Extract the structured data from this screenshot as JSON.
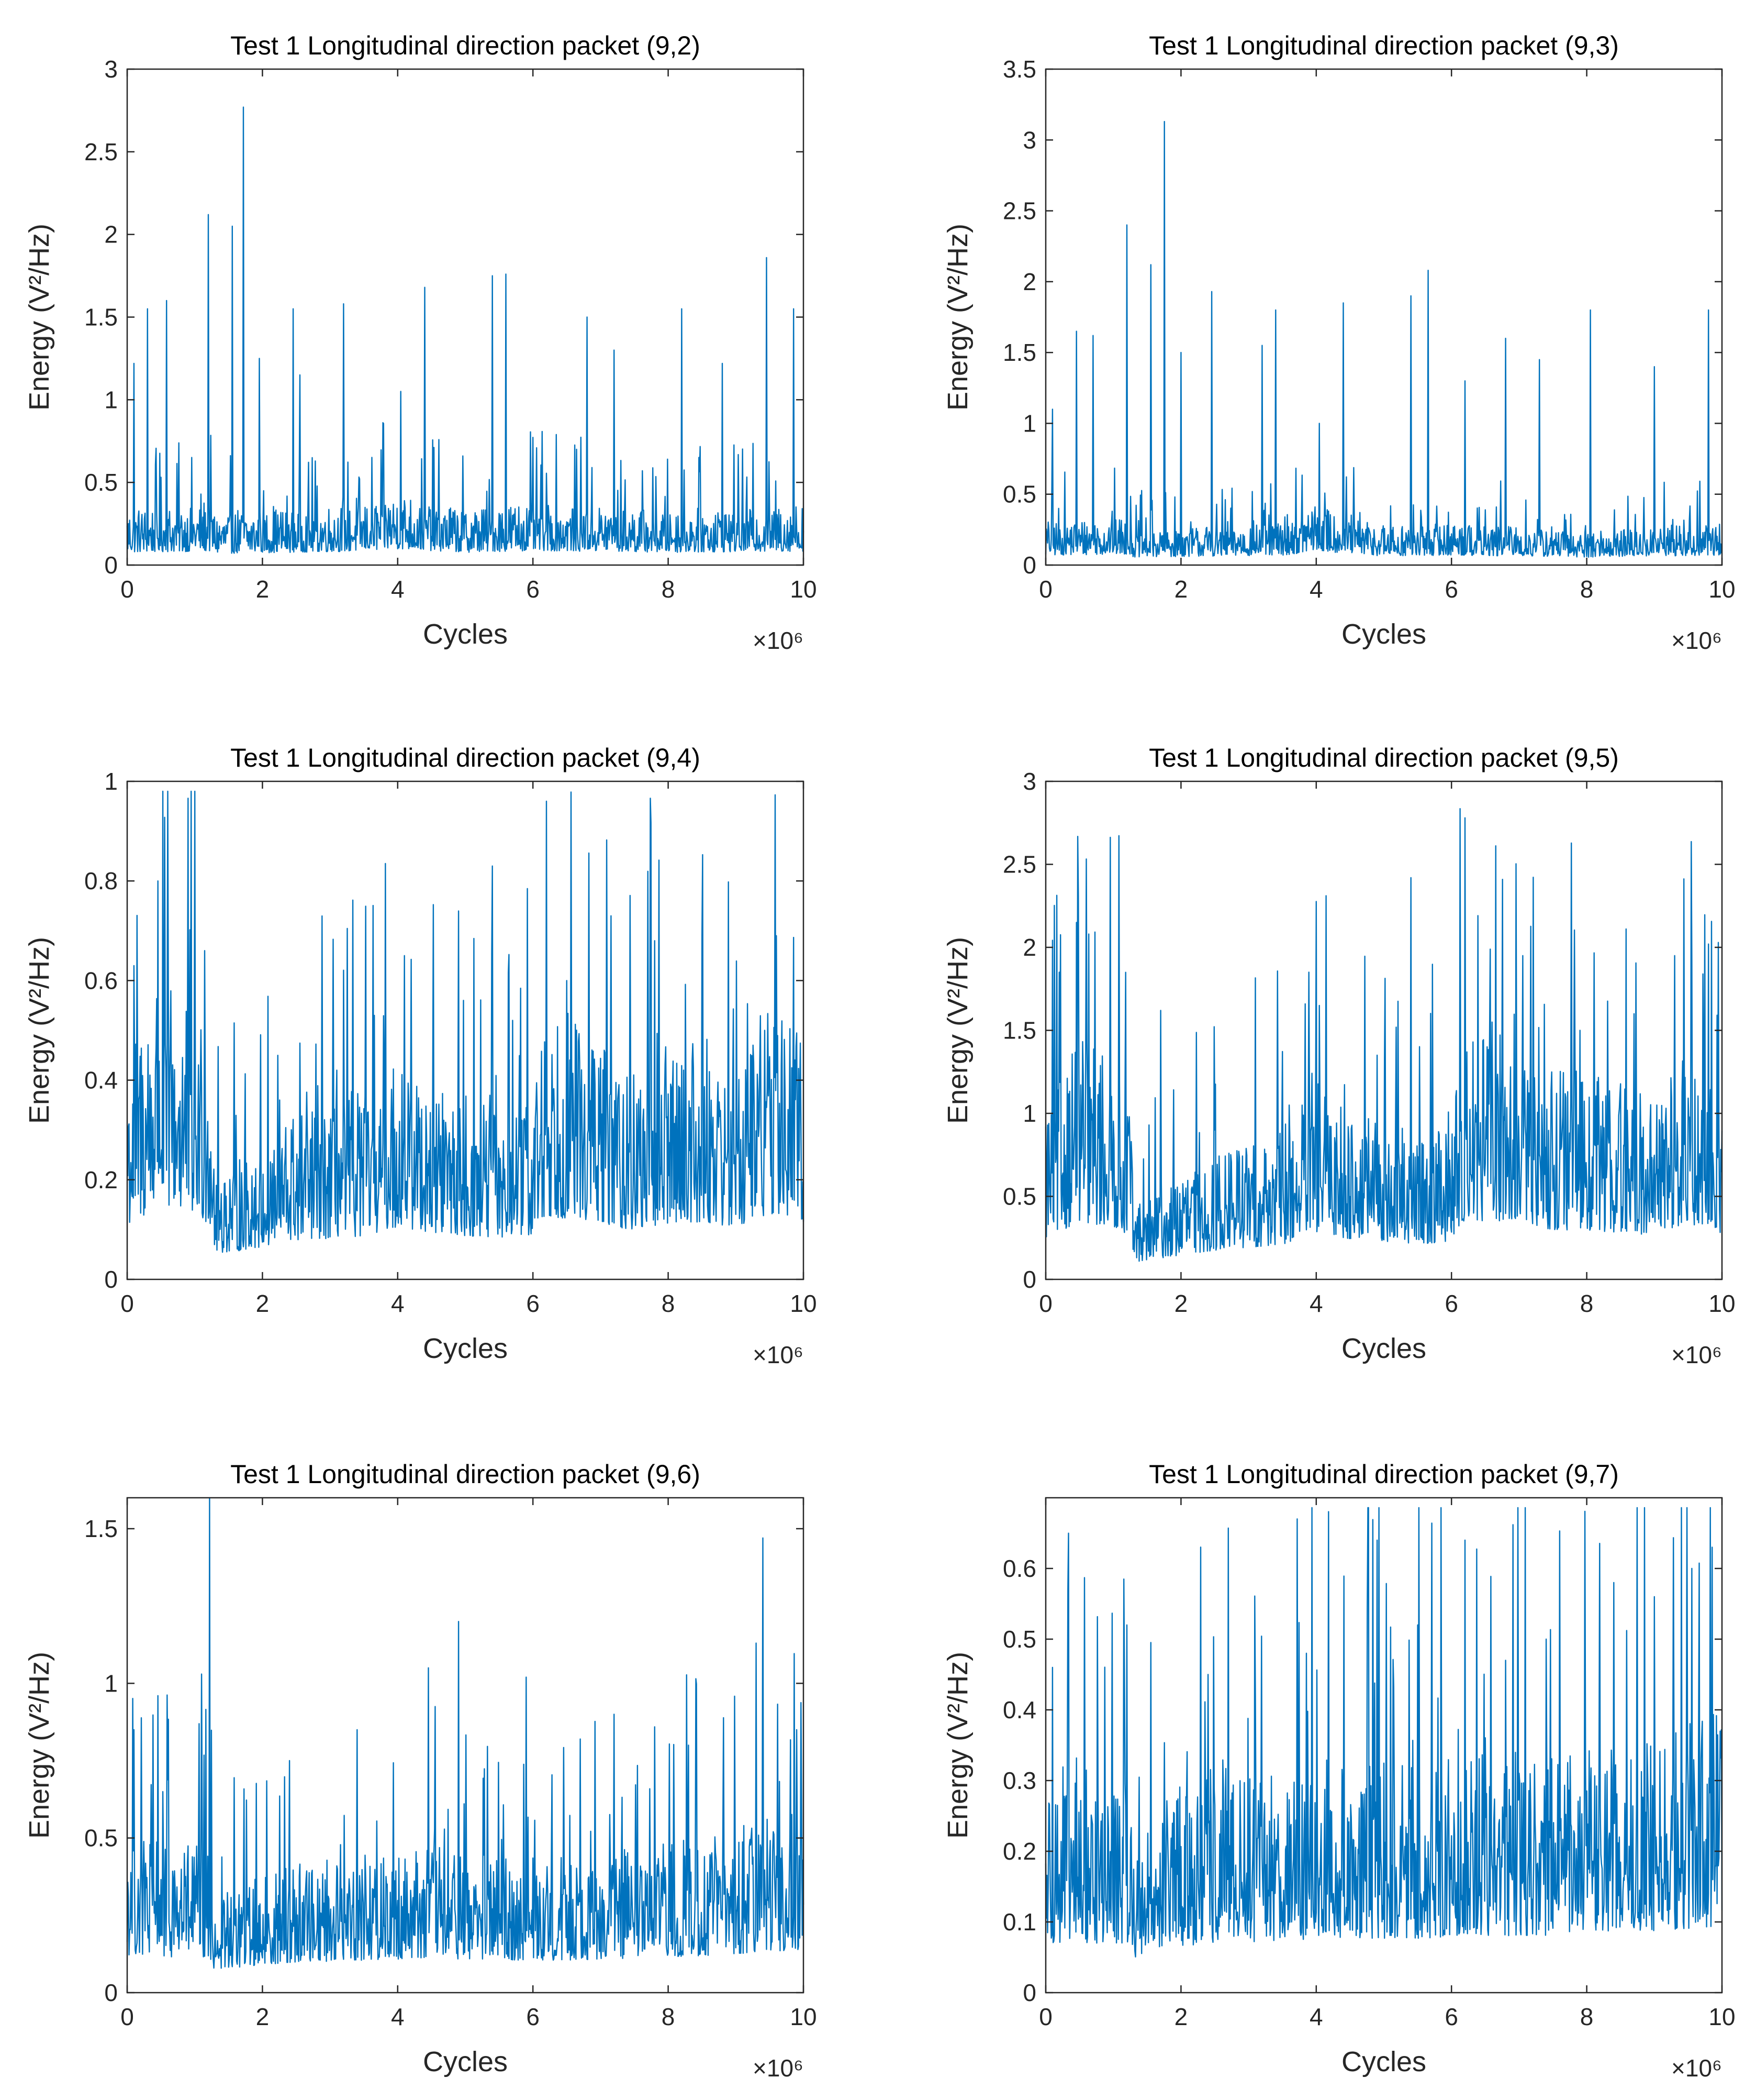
{
  "accent_color": "#0072BD",
  "chart_data": [
    {
      "type": "line",
      "title": "Test 1 Longitudinal direction packet (9,2)",
      "xlabel": "Cycles",
      "ylabel": "Energy (V²/Hz)",
      "x_multiplier": "×10⁶",
      "xlim": [
        0,
        10
      ],
      "ylim": [
        0,
        3
      ],
      "xticks": [
        0,
        2,
        4,
        6,
        8,
        10
      ],
      "yticks": [
        0,
        0.5,
        1,
        1.5,
        2,
        2.5,
        3
      ],
      "ytick_labels": [
        "0",
        "0.5",
        "1",
        "1.5",
        "2",
        "2.5",
        "3"
      ],
      "series": [
        {
          "name": "Energy",
          "envelope": {
            "x": [
              0,
              1.25,
              1.3,
              3.5,
              4.0,
              5.0,
              6.0,
              8.0,
              10.0
            ],
            "y": [
              0.22,
              0.24,
              0.2,
              0.24,
              0.28,
              0.22,
              0.25,
              0.22,
              0.24
            ]
          },
          "peaks": [
            {
              "x": 1.72,
              "y": 2.77
            },
            {
              "x": 1.2,
              "y": 2.12
            },
            {
              "x": 1.55,
              "y": 2.05
            },
            {
              "x": 9.45,
              "y": 1.86
            },
            {
              "x": 5.4,
              "y": 1.75
            },
            {
              "x": 5.6,
              "y": 1.76
            },
            {
              "x": 4.4,
              "y": 1.68
            },
            {
              "x": 0.58,
              "y": 1.6
            },
            {
              "x": 0.3,
              "y": 1.55
            },
            {
              "x": 2.45,
              "y": 1.55
            },
            {
              "x": 3.2,
              "y": 1.58
            },
            {
              "x": 6.8,
              "y": 1.5
            },
            {
              "x": 8.2,
              "y": 1.55
            },
            {
              "x": 9.85,
              "y": 1.55
            },
            {
              "x": 0.1,
              "y": 1.22
            },
            {
              "x": 1.95,
              "y": 1.25
            },
            {
              "x": 2.55,
              "y": 1.15
            },
            {
              "x": 4.05,
              "y": 1.05
            },
            {
              "x": 7.2,
              "y": 1.3
            },
            {
              "x": 8.8,
              "y": 1.22
            }
          ]
        }
      ]
    },
    {
      "type": "line",
      "title": "Test 1 Longitudinal direction packet (9,3)",
      "xlabel": "Cycles",
      "ylabel": "Energy (V²/Hz)",
      "x_multiplier": "×10⁶",
      "xlim": [
        0,
        10
      ],
      "ylim": [
        0,
        3.5
      ],
      "xticks": [
        0,
        2,
        4,
        6,
        8,
        10
      ],
      "yticks": [
        0,
        0.5,
        1,
        1.5,
        2,
        2.5,
        3,
        3.5
      ],
      "ytick_labels": [
        "0",
        "0.5",
        "1",
        "1.5",
        "2",
        "2.5",
        "3",
        "3.5"
      ],
      "series": [
        {
          "name": "Energy",
          "envelope": {
            "x": [
              0,
              1.25,
              1.3,
              3.5,
              4.0,
              5.0,
              6.0,
              8.0,
              10.0
            ],
            "y": [
              0.2,
              0.22,
              0.16,
              0.2,
              0.28,
              0.18,
              0.2,
              0.16,
              0.2
            ]
          },
          "peaks": [
            {
              "x": 1.75,
              "y": 3.13
            },
            {
              "x": 1.2,
              "y": 2.4
            },
            {
              "x": 1.55,
              "y": 2.12
            },
            {
              "x": 5.65,
              "y": 2.08
            },
            {
              "x": 2.45,
              "y": 1.93
            },
            {
              "x": 5.4,
              "y": 1.9
            },
            {
              "x": 4.4,
              "y": 1.85
            },
            {
              "x": 3.4,
              "y": 1.8
            },
            {
              "x": 8.05,
              "y": 1.8
            },
            {
              "x": 9.8,
              "y": 1.8
            },
            {
              "x": 0.45,
              "y": 1.65
            },
            {
              "x": 0.7,
              "y": 1.62
            },
            {
              "x": 6.8,
              "y": 1.6
            },
            {
              "x": 3.2,
              "y": 1.55
            },
            {
              "x": 0.1,
              "y": 1.1
            },
            {
              "x": 2.0,
              "y": 1.5
            },
            {
              "x": 7.3,
              "y": 1.45
            },
            {
              "x": 9.0,
              "y": 1.4
            },
            {
              "x": 4.05,
              "y": 1.0
            },
            {
              "x": 6.2,
              "y": 1.3
            }
          ]
        }
      ]
    },
    {
      "type": "line",
      "title": "Test 1 Longitudinal direction packet (9,4)",
      "xlabel": "Cycles",
      "ylabel": "Energy (V²/Hz)",
      "x_multiplier": "×10⁶",
      "xlim": [
        0,
        10
      ],
      "ylim": [
        0,
        1
      ],
      "xticks": [
        0,
        2,
        4,
        6,
        8,
        10
      ],
      "yticks": [
        0,
        0.2,
        0.4,
        0.6,
        0.8,
        1
      ],
      "ytick_labels": [
        "0",
        "0.2",
        "0.4",
        "0.6",
        "0.8",
        "1"
      ],
      "series": [
        {
          "name": "Energy",
          "envelope": {
            "x": [
              0,
              0.5,
              1.1,
              1.25,
              1.3,
              1.6,
              2.5,
              3.5,
              4.0,
              4.5,
              5.5,
              6.0,
              6.2,
              6.8,
              7.5,
              8.0,
              8.5,
              9.0,
              9.5,
              10.0
            ],
            "y": [
              0.3,
              0.42,
              0.35,
              0.3,
              0.15,
              0.16,
              0.22,
              0.25,
              0.3,
              0.27,
              0.23,
              0.25,
              0.36,
              0.34,
              0.28,
              0.32,
              0.33,
              0.3,
              0.38,
              0.33
            ]
          },
          "peaks": [
            {
              "x": 6.2,
              "y": 0.96
            },
            {
              "x": 5.4,
              "y": 0.83
            },
            {
              "x": 0.45,
              "y": 0.8
            },
            {
              "x": 7.15,
              "y": 0.73
            },
            {
              "x": 8.5,
              "y": 0.69
            },
            {
              "x": 9.6,
              "y": 0.69
            },
            {
              "x": 4.1,
              "y": 0.65
            },
            {
              "x": 0.1,
              "y": 0.63
            },
            {
              "x": 1.15,
              "y": 0.66
            },
            {
              "x": 7.8,
              "y": 0.68
            },
            {
              "x": 6.5,
              "y": 0.6
            },
            {
              "x": 2.25,
              "y": 0.36
            },
            {
              "x": 3.1,
              "y": 0.42
            },
            {
              "x": 5.7,
              "y": 0.52
            }
          ]
        }
      ]
    },
    {
      "type": "line",
      "title": "Test 1 Longitudinal direction packet (9,5)",
      "xlabel": "Cycles",
      "ylabel": "Energy (V²/Hz)",
      "x_multiplier": "×10⁶",
      "xlim": [
        0,
        10
      ],
      "ylim": [
        0,
        3
      ],
      "xticks": [
        0,
        2,
        4,
        6,
        8,
        10
      ],
      "yticks": [
        0,
        0.5,
        1,
        1.5,
        2,
        2.5,
        3
      ],
      "ytick_labels": [
        "0",
        "0.5",
        "1",
        "1.5",
        "2",
        "2.5",
        "3"
      ],
      "series": [
        {
          "name": "Energy",
          "envelope": {
            "x": [
              0,
              0.5,
              1.1,
              1.25,
              1.3,
              1.6,
              2.5,
              3.5,
              4.0,
              4.5,
              5.5,
              6.0,
              6.2,
              6.8,
              7.5,
              8.0,
              9.0,
              9.5,
              10.0
            ],
            "y": [
              0.7,
              1.0,
              0.85,
              0.75,
              0.3,
              0.35,
              0.5,
              0.6,
              0.8,
              0.7,
              0.6,
              0.65,
              1.0,
              1.0,
              0.85,
              0.85,
              0.75,
              0.95,
              0.8
            ]
          },
          "peaks": [
            {
              "x": 6.2,
              "y": 2.78
            },
            {
              "x": 5.4,
              "y": 2.42
            },
            {
              "x": 0.45,
              "y": 2.15
            },
            {
              "x": 7.05,
              "y": 1.95
            },
            {
              "x": 9.3,
              "y": 1.95
            },
            {
              "x": 9.8,
              "y": 2.02
            },
            {
              "x": 0.2,
              "y": 1.85
            },
            {
              "x": 1.7,
              "y": 1.62
            },
            {
              "x": 4.05,
              "y": 1.65
            },
            {
              "x": 8.7,
              "y": 1.6
            },
            {
              "x": 6.6,
              "y": 1.55
            },
            {
              "x": 7.9,
              "y": 1.5
            },
            {
              "x": 2.5,
              "y": 0.9
            },
            {
              "x": 3.6,
              "y": 1.05
            }
          ]
        }
      ]
    },
    {
      "type": "line",
      "title": "Test 1 Longitudinal direction packet (9,6)",
      "xlabel": "Cycles",
      "ylabel": "Energy (V²/Hz)",
      "x_multiplier": "×10⁶",
      "xlim": [
        0,
        10
      ],
      "ylim": [
        0,
        1.6
      ],
      "xticks": [
        0,
        2,
        4,
        6,
        8,
        10
      ],
      "yticks": [
        0,
        0.5,
        1,
        1.5
      ],
      "ytick_labels": [
        "0",
        "0.5",
        "1",
        "1.5"
      ],
      "series": [
        {
          "name": "Energy",
          "envelope": {
            "x": [
              0,
              0.6,
              1.2,
              1.3,
              1.7,
              2.5,
              3.5,
              4.5,
              5.5,
              6.5,
              7.5,
              8.5,
              9.5,
              10.0
            ],
            "y": [
              0.35,
              0.33,
              0.32,
              0.2,
              0.24,
              0.28,
              0.3,
              0.32,
              0.3,
              0.3,
              0.32,
              0.34,
              0.38,
              0.4
            ]
          },
          "peaks": [
            {
              "x": 1.22,
              "y": 1.6
            },
            {
              "x": 9.4,
              "y": 1.47
            },
            {
              "x": 4.9,
              "y": 1.2
            },
            {
              "x": 1.1,
              "y": 1.03
            },
            {
              "x": 4.45,
              "y": 1.05
            },
            {
              "x": 5.9,
              "y": 1.02
            },
            {
              "x": 0.45,
              "y": 0.96
            },
            {
              "x": 7.2,
              "y": 0.9
            },
            {
              "x": 9.9,
              "y": 0.85
            },
            {
              "x": 0.1,
              "y": 0.85
            },
            {
              "x": 3.4,
              "y": 0.85
            },
            {
              "x": 6.7,
              "y": 0.82
            },
            {
              "x": 8.3,
              "y": 0.8
            },
            {
              "x": 2.4,
              "y": 0.75
            }
          ]
        }
      ]
    },
    {
      "type": "line",
      "title": "Test 1 Longitudinal direction packet (9,7)",
      "xlabel": "Cycles",
      "ylabel": "Energy (V²/Hz)",
      "x_multiplier": "×10⁶",
      "xlim": [
        0,
        10
      ],
      "ylim": [
        0,
        0.7
      ],
      "xticks": [
        0,
        2,
        4,
        6,
        8,
        10
      ],
      "yticks": [
        0,
        0.1,
        0.2,
        0.3,
        0.4,
        0.5,
        0.6
      ],
      "ytick_labels": [
        "0",
        "0.1",
        "0.2",
        "0.3",
        "0.4",
        "0.5",
        "0.6"
      ],
      "series": [
        {
          "name": "Energy",
          "envelope": {
            "x": [
              0,
              0.6,
              1.2,
              1.3,
              1.6,
              2.5,
              3.5,
              4.5,
              5.5,
              6.5,
              7.5,
              8.5,
              9.5,
              10.0
            ],
            "y": [
              0.2,
              0.2,
              0.2,
              0.14,
              0.18,
              0.2,
              0.21,
              0.22,
              0.22,
              0.23,
              0.23,
              0.24,
              0.26,
              0.27
            ]
          },
          "peaks": [
            {
              "x": 4.9,
              "y": 0.64
            },
            {
              "x": 6.2,
              "y": 0.64
            },
            {
              "x": 9.85,
              "y": 0.63
            },
            {
              "x": 9.55,
              "y": 0.6
            },
            {
              "x": 8.4,
              "y": 0.58
            },
            {
              "x": 9.0,
              "y": 0.56
            },
            {
              "x": 1.2,
              "y": 0.52
            },
            {
              "x": 5.5,
              "y": 0.52
            },
            {
              "x": 7.4,
              "y": 0.5
            },
            {
              "x": 3.85,
              "y": 0.48
            },
            {
              "x": 0.1,
              "y": 0.46
            },
            {
              "x": 2.4,
              "y": 0.45
            },
            {
              "x": 6.8,
              "y": 0.47
            },
            {
              "x": 3.1,
              "y": 0.42
            }
          ]
        }
      ]
    }
  ]
}
